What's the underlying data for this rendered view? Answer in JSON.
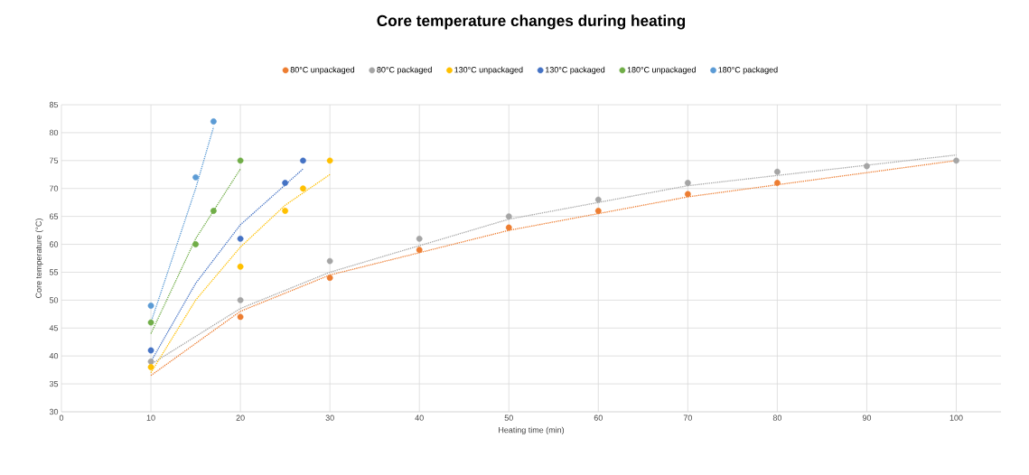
{
  "chart_data": {
    "type": "scatter",
    "title": "Core temperature changes during heating",
    "xlabel": "Heating time (min)",
    "ylabel": "Core temperature  (°C)",
    "xlim": [
      0,
      105
    ],
    "xticks": [
      0,
      10,
      20,
      30,
      40,
      50,
      60,
      70,
      80,
      90,
      100
    ],
    "ylim": [
      30,
      85
    ],
    "yticks": [
      30,
      35,
      40,
      45,
      50,
      55,
      60,
      65,
      70,
      75,
      80,
      85
    ],
    "grid": true,
    "legend": "top",
    "series": [
      {
        "name": "80°C unpackaged",
        "marker": "circle",
        "color": "#ed7d31",
        "x": [
          20,
          30,
          40,
          50,
          60,
          70,
          80
        ],
        "values": [
          47,
          54,
          59,
          63,
          66,
          69,
          71
        ]
      },
      {
        "name": "80°C packaged",
        "marker": "circle",
        "color": "#a5a5a5",
        "x": [
          10,
          20,
          30,
          40,
          50,
          60,
          70,
          80,
          90,
          100
        ],
        "values": [
          39,
          50,
          57,
          61,
          65,
          68,
          71,
          73,
          74,
          75
        ]
      },
      {
        "name": "130°C unpackaged",
        "marker": "circle",
        "color": "#ffc000",
        "x": [
          10,
          20,
          25,
          27,
          30
        ],
        "values": [
          38,
          56,
          66,
          70,
          75
        ]
      },
      {
        "name": "130°C packaged",
        "marker": "circle",
        "color": "#4472c4",
        "x": [
          10,
          20,
          25,
          27
        ],
        "values": [
          41,
          61,
          71,
          75
        ]
      },
      {
        "name": "180°C unpackaged",
        "marker": "circle",
        "color": "#70ad47",
        "x": [
          10,
          15,
          17,
          20
        ],
        "values": [
          46,
          60,
          66,
          75
        ]
      },
      {
        "name": "180°C packaged",
        "marker": "circle",
        "color": "#5b9bd5",
        "x": [
          10,
          15,
          17
        ],
        "values": [
          49,
          72,
          82
        ]
      },
      {
        "type": "line",
        "line_style": "dotted",
        "marker": "none",
        "color": "#ed7d31",
        "x": [
          10,
          20,
          30,
          50,
          70,
          100
        ],
        "values": [
          36.5,
          48,
          54.5,
          62.5,
          68.5,
          75
        ]
      },
      {
        "type": "line",
        "line_style": "dotted",
        "marker": "none",
        "color": "#a5a5a5",
        "x": [
          10,
          20,
          30,
          50,
          70,
          100
        ],
        "values": [
          38.5,
          48.5,
          55,
          64.5,
          70.5,
          76
        ]
      },
      {
        "type": "line",
        "line_style": "dotted",
        "marker": "none",
        "color": "#ffc000",
        "x": [
          10,
          15,
          20,
          25,
          30
        ],
        "values": [
          37,
          50,
          59.5,
          67,
          72.5
        ]
      },
      {
        "type": "line",
        "line_style": "dotted",
        "marker": "none",
        "color": "#4472c4",
        "x": [
          10,
          15,
          20,
          27
        ],
        "values": [
          39,
          53,
          63.5,
          73.5
        ]
      },
      {
        "type": "line",
        "line_style": "dotted",
        "marker": "none",
        "color": "#70ad47",
        "x": [
          10,
          15,
          20
        ],
        "values": [
          44,
          61,
          73.5
        ]
      },
      {
        "type": "line",
        "line_style": "dotted",
        "marker": "none",
        "color": "#5b9bd5",
        "x": [
          10,
          15,
          17
        ],
        "values": [
          46,
          70,
          81
        ]
      }
    ]
  }
}
